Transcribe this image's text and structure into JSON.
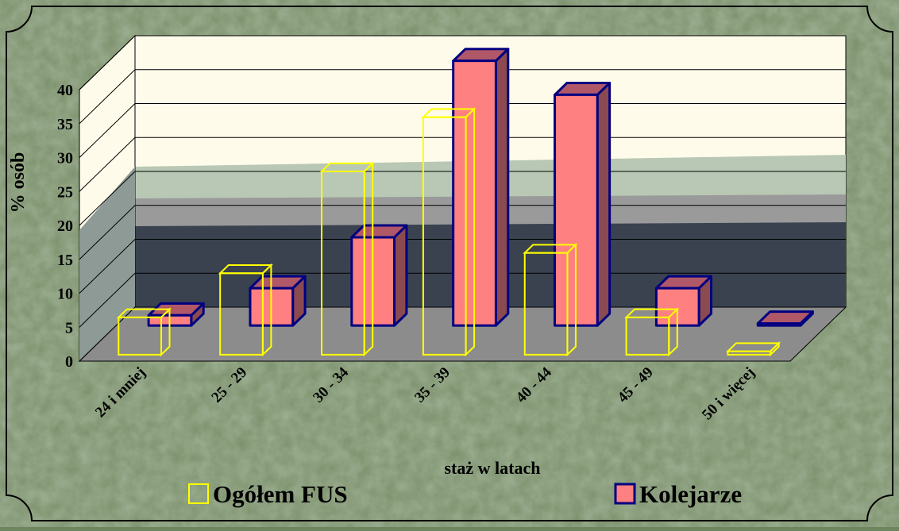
{
  "chart_data": {
    "type": "bar",
    "x_label": "staż w latach",
    "y_label": "% osób",
    "categories": [
      "24 i mniej",
      "25 - 29",
      "30 - 34",
      "35 - 39",
      "40 - 44",
      "45 - 49",
      "50 i więcej"
    ],
    "series": [
      {
        "name": "Ogółem FUS",
        "color": "#ffff00",
        "values": [
          5.5,
          12,
          27,
          35,
          15,
          5.5,
          0.5
        ]
      },
      {
        "name": "Kolejarze",
        "color": "#ff8080",
        "values": [
          1.5,
          5.5,
          13,
          39,
          34,
          5.5,
          0.3
        ]
      }
    ],
    "ylim": [
      0,
      40
    ],
    "yticks": [
      0,
      5,
      10,
      15,
      20,
      25,
      30,
      35,
      40
    ],
    "grid": true
  }
}
